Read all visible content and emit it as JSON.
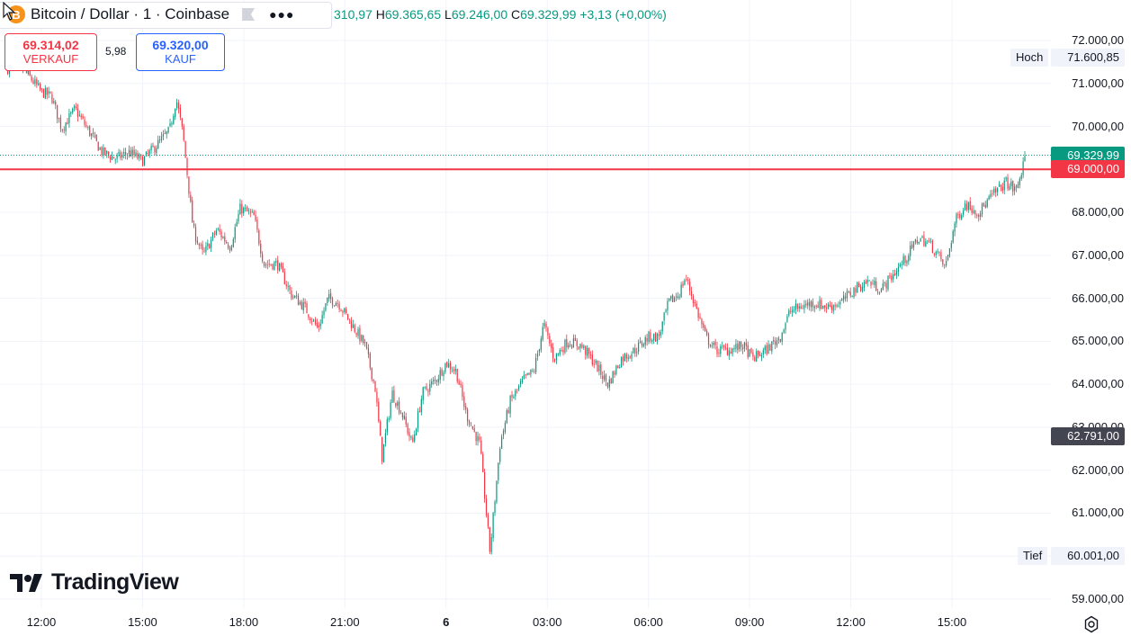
{
  "header": {
    "coin_glyph": "B",
    "title": "Bitcoin / Dollar · 1 · Coinbase",
    "more_icon": "more-dots-icon",
    "ohlc": {
      "o_value": "310,97",
      "h_label": "H",
      "h_value": "69.365,65",
      "l_label": "L",
      "l_value": "69.246,00",
      "c_label": "C",
      "c_value": "69.329,99",
      "change": "+3,13 (+0,00%)"
    }
  },
  "trade": {
    "sell_price": "69.314,02",
    "sell_label": "VERKAUF",
    "spread": "5,98",
    "buy_price": "69.320,00",
    "buy_label": "KAUF"
  },
  "brand": {
    "name": "TradingView"
  },
  "price_tags": {
    "high_label": "Hoch",
    "high_value": "71.600,85",
    "low_label": "Tief",
    "low_value": "60.001,00",
    "last_value": "69.329,99",
    "alert_value": "69.000,00",
    "crosshair_value": "62.791,00"
  },
  "colors": {
    "up": "#089981",
    "down": "#f23645",
    "alert": "#f23645",
    "grid": "#f0f3fa"
  },
  "chart_data": {
    "type": "candlestick",
    "y_ticks": [
      59000,
      60000,
      61000,
      62000,
      63000,
      64000,
      65000,
      66000,
      67000,
      68000,
      69000,
      70000,
      71000,
      72000
    ],
    "y_tick_labels": [
      "59.000,00",
      "60.000,00",
      "61.000,00",
      "62.000,00",
      "63.000,00",
      "64.000,00",
      "65.000,00",
      "66.000,00",
      "67.000,00",
      "68.000,00",
      "69.000,00",
      "70.000,00",
      "71.000,00",
      "72.000,00"
    ],
    "x_ticks": [
      "12:00",
      "15:00",
      "18:00",
      "21:00",
      "6",
      "03:00",
      "06:00",
      "09:00",
      "12:00",
      "15:00"
    ],
    "x_tick_hours": [
      12,
      15,
      18,
      21,
      24,
      27,
      30,
      33,
      36,
      39
    ],
    "x_range_hours": [
      10.8,
      42.2
    ],
    "ylim": [
      58800,
      72500
    ],
    "alert_line": 69000,
    "last_price": 69329.99,
    "high": 71600.85,
    "low": 60001.0,
    "crosshair_price": 62791,
    "path": [
      [
        11.0,
        71350
      ],
      [
        11.3,
        71450
      ],
      [
        11.6,
        71200
      ],
      [
        12.0,
        70800
      ],
      [
        12.3,
        70700
      ],
      [
        12.6,
        69950
      ],
      [
        13.0,
        70400
      ],
      [
        13.4,
        69900
      ],
      [
        13.8,
        69400
      ],
      [
        14.2,
        69250
      ],
      [
        14.6,
        69400
      ],
      [
        15.0,
        69200
      ],
      [
        15.4,
        69550
      ],
      [
        15.8,
        69900
      ],
      [
        16.0,
        70650
      ],
      [
        16.2,
        69800
      ],
      [
        16.5,
        67600
      ],
      [
        16.8,
        67000
      ],
      [
        17.2,
        67600
      ],
      [
        17.6,
        67200
      ],
      [
        17.9,
        68100
      ],
      [
        18.3,
        67900
      ],
      [
        18.6,
        66800
      ],
      [
        19.0,
        66800
      ],
      [
        19.4,
        66100
      ],
      [
        19.8,
        65800
      ],
      [
        20.2,
        65300
      ],
      [
        20.5,
        66000
      ],
      [
        20.8,
        65900
      ],
      [
        21.2,
        65400
      ],
      [
        21.6,
        64900
      ],
      [
        21.9,
        63900
      ],
      [
        22.1,
        62300
      ],
      [
        22.4,
        63800
      ],
      [
        22.7,
        63300
      ],
      [
        23.0,
        62600
      ],
      [
        23.3,
        63800
      ],
      [
        23.7,
        64100
      ],
      [
        24.0,
        64500
      ],
      [
        24.3,
        64300
      ],
      [
        24.6,
        63300
      ],
      [
        25.0,
        62600
      ],
      [
        25.3,
        60100
      ],
      [
        25.6,
        62600
      ],
      [
        25.9,
        63600
      ],
      [
        26.3,
        64100
      ],
      [
        26.6,
        64300
      ],
      [
        26.9,
        65400
      ],
      [
        27.2,
        64600
      ],
      [
        27.6,
        65000
      ],
      [
        28.0,
        64900
      ],
      [
        28.4,
        64500
      ],
      [
        28.8,
        64000
      ],
      [
        29.2,
        64600
      ],
      [
        29.6,
        64800
      ],
      [
        30.0,
        65100
      ],
      [
        30.3,
        65100
      ],
      [
        30.6,
        65900
      ],
      [
        30.9,
        66100
      ],
      [
        31.1,
        66500
      ],
      [
        31.4,
        65800
      ],
      [
        31.7,
        65100
      ],
      [
        32.0,
        64800
      ],
      [
        32.4,
        64800
      ],
      [
        32.8,
        64900
      ],
      [
        33.1,
        64600
      ],
      [
        33.5,
        64800
      ],
      [
        33.9,
        65100
      ],
      [
        34.2,
        65700
      ],
      [
        34.5,
        65800
      ],
      [
        34.9,
        65900
      ],
      [
        35.3,
        65800
      ],
      [
        35.7,
        65900
      ],
      [
        36.1,
        66200
      ],
      [
        36.5,
        66400
      ],
      [
        36.9,
        66200
      ],
      [
        37.2,
        66500
      ],
      [
        37.6,
        66900
      ],
      [
        38.0,
        67400
      ],
      [
        38.3,
        67300
      ],
      [
        38.6,
        67000
      ],
      [
        38.8,
        66700
      ],
      [
        39.1,
        67800
      ],
      [
        39.4,
        68200
      ],
      [
        39.8,
        68000
      ],
      [
        40.2,
        68400
      ],
      [
        40.6,
        68700
      ],
      [
        40.9,
        68500
      ],
      [
        41.2,
        69330
      ]
    ]
  }
}
